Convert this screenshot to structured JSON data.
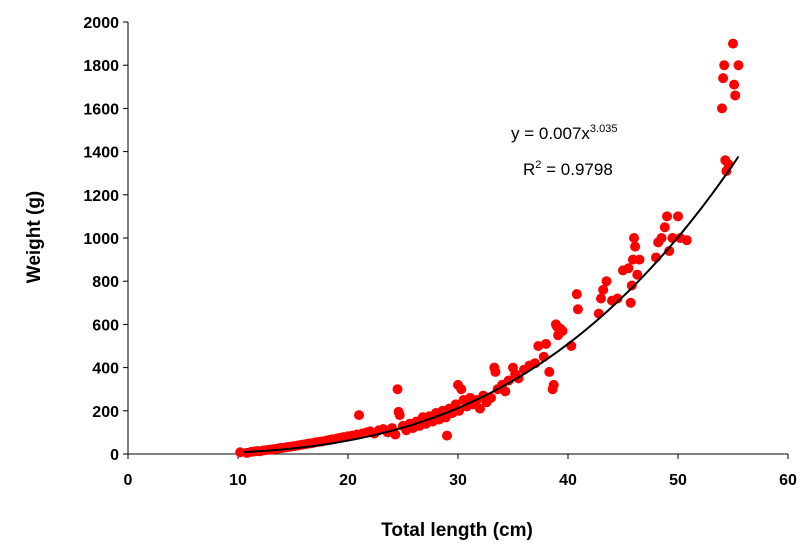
{
  "chart_data": {
    "type": "scatter",
    "xlabel": "Total length (cm)",
    "ylabel": "Weight (g)",
    "xlim": [
      0,
      60
    ],
    "ylim": [
      0,
      2000
    ],
    "x_ticks": [
      "0",
      "10",
      "20",
      "30",
      "40",
      "50",
      "60"
    ],
    "y_ticks": [
      "0",
      "200",
      "400",
      "600",
      "800",
      "1000",
      "1200",
      "1400",
      "1600",
      "1800",
      "2000"
    ],
    "grid": false,
    "legend": "none",
    "colors": {
      "points": "#ff0000",
      "trendline": "#000000"
    },
    "trendline": {
      "type": "power",
      "coefficient": 0.007,
      "exponent": 3.035,
      "x_range": [
        10.5,
        55.5
      ],
      "equation_prefix": "y = 0.007x",
      "equation_exponent": "3.035",
      "r2_prefix": "R",
      "r2_exponent": "2",
      "r2_suffix": " = 0.9798"
    },
    "points": [
      [
        10.2,
        8
      ],
      [
        10.8,
        5
      ],
      [
        11.2,
        10
      ],
      [
        11.5,
        12
      ],
      [
        11.8,
        14
      ],
      [
        12.0,
        13
      ],
      [
        12.3,
        16
      ],
      [
        12.6,
        18
      ],
      [
        12.9,
        20
      ],
      [
        13.2,
        22
      ],
      [
        13.5,
        24
      ],
      [
        13.8,
        27
      ],
      [
        14.0,
        28
      ],
      [
        14.3,
        30
      ],
      [
        14.6,
        33
      ],
      [
        14.9,
        35
      ],
      [
        15.2,
        37
      ],
      [
        15.5,
        40
      ],
      [
        15.8,
        43
      ],
      [
        16.1,
        45
      ],
      [
        16.4,
        48
      ],
      [
        16.7,
        50
      ],
      [
        17.0,
        53
      ],
      [
        17.3,
        56
      ],
      [
        17.6,
        58
      ],
      [
        18.0,
        62
      ],
      [
        18.3,
        65
      ],
      [
        18.6,
        68
      ],
      [
        19.0,
        72
      ],
      [
        19.3,
        75
      ],
      [
        19.6,
        78
      ],
      [
        20.0,
        82
      ],
      [
        20.4,
        85
      ],
      [
        20.8,
        90
      ],
      [
        21.0,
        180
      ],
      [
        21.3,
        95
      ],
      [
        21.7,
        100
      ],
      [
        22.0,
        105
      ],
      [
        22.4,
        95
      ],
      [
        22.8,
        110
      ],
      [
        23.2,
        115
      ],
      [
        23.6,
        100
      ],
      [
        24.0,
        120
      ],
      [
        24.3,
        90
      ],
      [
        24.5,
        300
      ],
      [
        24.6,
        195
      ],
      [
        24.7,
        180
      ],
      [
        25.0,
        130
      ],
      [
        25.3,
        110
      ],
      [
        25.6,
        140
      ],
      [
        25.9,
        120
      ],
      [
        26.2,
        150
      ],
      [
        26.5,
        130
      ],
      [
        26.8,
        170
      ],
      [
        27.1,
        140
      ],
      [
        27.4,
        175
      ],
      [
        27.7,
        150
      ],
      [
        28.0,
        190
      ],
      [
        28.3,
        160
      ],
      [
        28.6,
        200
      ],
      [
        28.9,
        170
      ],
      [
        29.2,
        210
      ],
      [
        29.0,
        85
      ],
      [
        29.5,
        190
      ],
      [
        29.8,
        230
      ],
      [
        30.0,
        320
      ],
      [
        30.1,
        200
      ],
      [
        30.3,
        300
      ],
      [
        30.5,
        250
      ],
      [
        30.8,
        220
      ],
      [
        31.1,
        260
      ],
      [
        31.4,
        230
      ],
      [
        31.7,
        250
      ],
      [
        32.0,
        210
      ],
      [
        32.3,
        270
      ],
      [
        32.6,
        240
      ],
      [
        33.0,
        260
      ],
      [
        33.3,
        400
      ],
      [
        33.4,
        380
      ],
      [
        33.6,
        300
      ],
      [
        34.0,
        320
      ],
      [
        34.3,
        290
      ],
      [
        34.6,
        340
      ],
      [
        35.0,
        400
      ],
      [
        35.2,
        370
      ],
      [
        35.5,
        350
      ],
      [
        36.0,
        390
      ],
      [
        36.5,
        410
      ],
      [
        37.0,
        420
      ],
      [
        37.3,
        500
      ],
      [
        37.8,
        450
      ],
      [
        38.0,
        510
      ],
      [
        38.3,
        380
      ],
      [
        38.6,
        300
      ],
      [
        38.7,
        320
      ],
      [
        38.9,
        600
      ],
      [
        39.0,
        590
      ],
      [
        39.1,
        550
      ],
      [
        39.3,
        580
      ],
      [
        39.5,
        570
      ],
      [
        40.3,
        500
      ],
      [
        40.8,
        740
      ],
      [
        40.9,
        670
      ],
      [
        42.8,
        650
      ],
      [
        43.0,
        720
      ],
      [
        43.2,
        760
      ],
      [
        43.5,
        800
      ],
      [
        44.0,
        710
      ],
      [
        44.5,
        720
      ],
      [
        45.0,
        850
      ],
      [
        45.5,
        860
      ],
      [
        45.7,
        700
      ],
      [
        45.8,
        780
      ],
      [
        45.9,
        900
      ],
      [
        46.0,
        1000
      ],
      [
        46.1,
        960
      ],
      [
        46.3,
        830
      ],
      [
        46.5,
        900
      ],
      [
        48.0,
        910
      ],
      [
        48.2,
        980
      ],
      [
        48.5,
        1000
      ],
      [
        48.8,
        1050
      ],
      [
        49.0,
        1100
      ],
      [
        49.2,
        940
      ],
      [
        49.5,
        1000
      ],
      [
        50.0,
        1100
      ],
      [
        50.2,
        1000
      ],
      [
        50.8,
        990
      ],
      [
        54.0,
        1600
      ],
      [
        54.1,
        1740
      ],
      [
        54.2,
        1800
      ],
      [
        54.3,
        1360
      ],
      [
        54.4,
        1310
      ],
      [
        54.6,
        1340
      ],
      [
        55.0,
        1900
      ],
      [
        55.1,
        1710
      ],
      [
        55.2,
        1660
      ],
      [
        55.5,
        1800
      ]
    ]
  }
}
